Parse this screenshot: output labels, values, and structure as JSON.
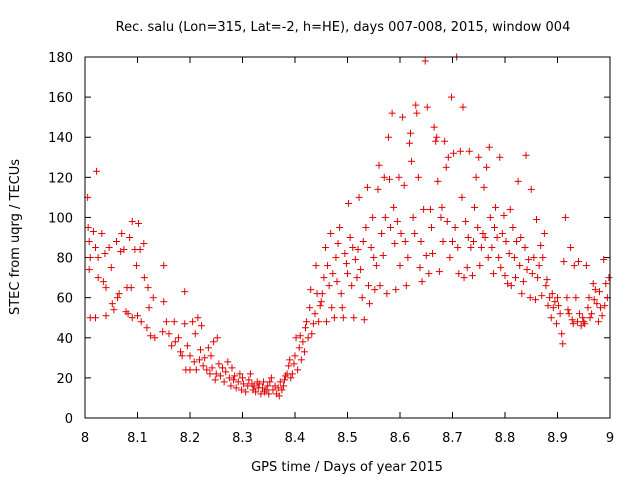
{
  "chart_data": {
    "type": "scatter",
    "title": "Rec. salu (Lon=315, Lat=-2, h=HE), days 007-008, 2015, window 004",
    "xlabel": "GPS time / Days of year 2015",
    "ylabel": "STEC from uqrg / TECUs",
    "xlim": [
      8.0,
      9.0
    ],
    "ylim": [
      0,
      180
    ],
    "x_ticks": [
      "8",
      "8.1",
      "8.2",
      "8.3",
      "8.4",
      "8.5",
      "8.6",
      "8.7",
      "8.8",
      "8.9",
      "9"
    ],
    "y_ticks": [
      "0",
      "20",
      "40",
      "60",
      "80",
      "100",
      "120",
      "140",
      "160",
      "180"
    ],
    "marker": "+",
    "color": "#e00000",
    "points": [
      [
        8.005,
        110
      ],
      [
        8.006,
        95
      ],
      [
        8.008,
        88
      ],
      [
        8.01,
        80
      ],
      [
        8.008,
        74
      ],
      [
        8.01,
        50
      ],
      [
        8.016,
        93
      ],
      [
        8.02,
        85
      ],
      [
        8.022,
        123
      ],
      [
        8.025,
        80
      ],
      [
        8.025,
        70
      ],
      [
        8.02,
        50
      ],
      [
        8.032,
        92
      ],
      [
        8.035,
        68
      ],
      [
        8.038,
        82
      ],
      [
        8.04,
        65
      ],
      [
        8.04,
        51
      ],
      [
        8.046,
        85
      ],
      [
        8.05,
        75
      ],
      [
        8.052,
        57
      ],
      [
        8.055,
        54
      ],
      [
        8.06,
        88
      ],
      [
        8.062,
        60
      ],
      [
        8.065,
        62
      ],
      [
        8.068,
        83
      ],
      [
        8.07,
        92
      ],
      [
        8.074,
        84
      ],
      [
        8.078,
        53
      ],
      [
        8.08,
        65
      ],
      [
        8.082,
        52
      ],
      [
        8.085,
        90
      ],
      [
        8.088,
        65
      ],
      [
        8.09,
        98
      ],
      [
        8.09,
        50
      ],
      [
        8.095,
        84
      ],
      [
        8.098,
        76
      ],
      [
        8.1,
        51
      ],
      [
        8.102,
        97
      ],
      [
        8.105,
        84
      ],
      [
        8.107,
        48
      ],
      [
        8.112,
        87
      ],
      [
        8.113,
        70
      ],
      [
        8.118,
        45
      ],
      [
        8.12,
        65
      ],
      [
        8.122,
        55
      ],
      [
        8.125,
        41
      ],
      [
        8.13,
        60
      ],
      [
        8.133,
        40
      ],
      [
        8.148,
        43
      ],
      [
        8.15,
        76
      ],
      [
        8.15,
        58
      ],
      [
        8.155,
        48
      ],
      [
        8.16,
        42
      ],
      [
        8.165,
        36
      ],
      [
        8.17,
        48
      ],
      [
        8.172,
        38
      ],
      [
        8.178,
        40
      ],
      [
        8.182,
        33
      ],
      [
        8.185,
        31
      ],
      [
        8.19,
        63
      ],
      [
        8.19,
        47
      ],
      [
        8.192,
        24
      ],
      [
        8.195,
        36
      ],
      [
        8.2,
        31
      ],
      [
        8.2,
        24
      ],
      [
        8.205,
        48
      ],
      [
        8.208,
        28
      ],
      [
        8.21,
        42
      ],
      [
        8.212,
        24
      ],
      [
        8.215,
        50
      ],
      [
        8.218,
        29
      ],
      [
        8.22,
        34
      ],
      [
        8.222,
        46
      ],
      [
        8.225,
        26
      ],
      [
        8.228,
        30
      ],
      [
        8.232,
        24
      ],
      [
        8.235,
        35
      ],
      [
        8.238,
        22
      ],
      [
        8.24,
        31
      ],
      [
        8.242,
        25
      ],
      [
        8.245,
        38
      ],
      [
        8.248,
        19
      ],
      [
        8.25,
        22
      ],
      [
        8.252,
        40
      ],
      [
        8.255,
        27
      ],
      [
        8.258,
        21
      ],
      [
        8.262,
        25
      ],
      [
        8.265,
        18
      ],
      [
        8.268,
        23
      ],
      [
        8.272,
        28
      ],
      [
        8.275,
        20
      ],
      [
        8.278,
        16
      ],
      [
        8.28,
        25
      ],
      [
        8.283,
        19
      ],
      [
        8.285,
        21
      ],
      [
        8.288,
        15
      ],
      [
        8.292,
        18
      ],
      [
        8.295,
        22
      ],
      [
        8.298,
        14
      ],
      [
        8.3,
        20
      ],
      [
        8.302,
        17
      ],
      [
        8.306,
        13
      ],
      [
        8.31,
        16
      ],
      [
        8.312,
        19
      ],
      [
        8.315,
        22
      ],
      [
        8.318,
        17
      ],
      [
        8.32,
        14
      ],
      [
        8.322,
        16
      ],
      [
        8.325,
        13
      ],
      [
        8.328,
        18
      ],
      [
        8.33,
        15
      ],
      [
        8.332,
        17
      ],
      [
        8.335,
        12
      ],
      [
        8.338,
        15
      ],
      [
        8.34,
        18
      ],
      [
        8.342,
        13
      ],
      [
        8.345,
        14
      ],
      [
        8.348,
        16
      ],
      [
        8.35,
        12
      ],
      [
        8.352,
        18
      ],
      [
        8.355,
        20
      ],
      [
        8.358,
        14
      ],
      [
        8.362,
        16
      ],
      [
        8.365,
        12
      ],
      [
        8.368,
        15
      ],
      [
        8.37,
        11
      ],
      [
        8.372,
        18
      ],
      [
        8.375,
        14
      ],
      [
        8.378,
        16
      ],
      [
        8.38,
        19
      ],
      [
        8.382,
        21
      ],
      [
        8.385,
        22
      ],
      [
        8.388,
        26
      ],
      [
        8.39,
        29
      ],
      [
        8.392,
        20
      ],
      [
        8.395,
        22
      ],
      [
        8.398,
        27
      ],
      [
        8.4,
        31
      ],
      [
        8.402,
        40
      ],
      [
        8.405,
        24
      ],
      [
        8.408,
        35
      ],
      [
        8.41,
        41
      ],
      [
        8.412,
        29
      ],
      [
        8.415,
        38
      ],
      [
        8.418,
        33
      ],
      [
        8.42,
        45
      ],
      [
        8.422,
        48
      ],
      [
        8.425,
        40
      ],
      [
        8.428,
        55
      ],
      [
        8.43,
        64
      ],
      [
        8.432,
        42
      ],
      [
        8.435,
        47
      ],
      [
        8.438,
        52
      ],
      [
        8.44,
        76
      ],
      [
        8.442,
        62
      ],
      [
        8.445,
        48
      ],
      [
        8.448,
        56
      ],
      [
        8.45,
        58
      ],
      [
        8.452,
        62
      ],
      [
        8.455,
        70
      ],
      [
        8.458,
        85
      ],
      [
        8.46,
        48
      ],
      [
        8.462,
        76
      ],
      [
        8.465,
        66
      ],
      [
        8.468,
        92
      ],
      [
        8.47,
        55
      ],
      [
        8.472,
        72
      ],
      [
        8.475,
        50
      ],
      [
        8.478,
        80
      ],
      [
        8.48,
        68
      ],
      [
        8.482,
        87
      ],
      [
        8.485,
        95
      ],
      [
        8.488,
        62
      ],
      [
        8.49,
        55
      ],
      [
        8.492,
        50
      ],
      [
        8.495,
        82
      ],
      [
        8.498,
        77
      ],
      [
        8.5,
        72
      ],
      [
        8.502,
        107
      ],
      [
        8.505,
        90
      ],
      [
        8.508,
        66
      ],
      [
        8.51,
        85
      ],
      [
        8.512,
        50
      ],
      [
        8.515,
        79
      ],
      [
        8.518,
        70
      ],
      [
        8.52,
        84
      ],
      [
        8.522,
        110
      ],
      [
        8.525,
        74
      ],
      [
        8.528,
        60
      ],
      [
        8.53,
        88
      ],
      [
        8.532,
        49
      ],
      [
        8.535,
        95
      ],
      [
        8.538,
        115
      ],
      [
        8.54,
        66
      ],
      [
        8.542,
        57
      ],
      [
        8.545,
        85
      ],
      [
        8.548,
        100
      ],
      [
        8.55,
        80
      ],
      [
        8.552,
        64
      ],
      [
        8.555,
        76
      ],
      [
        8.558,
        114
      ],
      [
        8.56,
        126
      ],
      [
        8.562,
        66
      ],
      [
        8.565,
        92
      ],
      [
        8.568,
        81
      ],
      [
        8.57,
        120
      ],
      [
        8.572,
        100
      ],
      [
        8.575,
        62
      ],
      [
        8.578,
        140
      ],
      [
        8.58,
        119
      ],
      [
        8.582,
        95
      ],
      [
        8.585,
        152
      ],
      [
        8.588,
        105
      ],
      [
        8.59,
        87
      ],
      [
        8.592,
        64
      ],
      [
        8.595,
        98
      ],
      [
        8.598,
        120
      ],
      [
        8.6,
        76
      ],
      [
        8.602,
        92
      ],
      [
        8.605,
        150
      ],
      [
        8.608,
        116
      ],
      [
        8.61,
        88
      ],
      [
        8.612,
        66
      ],
      [
        8.615,
        80
      ],
      [
        8.618,
        137
      ],
      [
        8.62,
        142
      ],
      [
        8.622,
        128
      ],
      [
        8.625,
        100
      ],
      [
        8.628,
        92
      ],
      [
        8.63,
        156
      ],
      [
        8.632,
        152
      ],
      [
        8.635,
        120
      ],
      [
        8.638,
        75
      ],
      [
        8.64,
        88
      ],
      [
        8.642,
        68
      ],
      [
        8.645,
        104
      ],
      [
        8.648,
        178
      ],
      [
        8.65,
        81
      ],
      [
        8.652,
        155
      ],
      [
        8.655,
        72
      ],
      [
        8.658,
        104
      ],
      [
        8.66,
        95
      ],
      [
        8.662,
        82
      ],
      [
        8.665,
        145
      ],
      [
        8.668,
        138
      ],
      [
        8.67,
        140
      ],
      [
        8.672,
        118
      ],
      [
        8.675,
        73
      ],
      [
        8.678,
        100
      ],
      [
        8.68,
        105
      ],
      [
        8.682,
        88
      ],
      [
        8.685,
        138
      ],
      [
        8.688,
        125
      ],
      [
        8.69,
        98
      ],
      [
        8.692,
        130
      ],
      [
        8.695,
        80
      ],
      [
        8.698,
        160
      ],
      [
        8.7,
        88
      ],
      [
        8.702,
        132
      ],
      [
        8.705,
        95
      ],
      [
        8.708,
        180
      ],
      [
        8.71,
        85
      ],
      [
        8.712,
        72
      ],
      [
        8.715,
        133
      ],
      [
        8.718,
        110
      ],
      [
        8.72,
        155
      ],
      [
        8.722,
        70
      ],
      [
        8.725,
        98
      ],
      [
        8.728,
        75
      ],
      [
        8.73,
        90
      ],
      [
        8.732,
        133
      ],
      [
        8.735,
        85
      ],
      [
        8.738,
        71
      ],
      [
        8.74,
        88
      ],
      [
        8.742,
        105
      ],
      [
        8.745,
        120
      ],
      [
        8.748,
        95
      ],
      [
        8.75,
        130
      ],
      [
        8.752,
        76
      ],
      [
        8.755,
        85
      ],
      [
        8.758,
        92
      ],
      [
        8.76,
        115
      ],
      [
        8.762,
        90
      ],
      [
        8.765,
        125
      ],
      [
        8.768,
        80
      ],
      [
        8.77,
        135
      ],
      [
        8.772,
        100
      ],
      [
        8.775,
        85
      ],
      [
        8.778,
        72
      ],
      [
        8.78,
        95
      ],
      [
        8.782,
        105
      ],
      [
        8.785,
        90
      ],
      [
        8.788,
        80
      ],
      [
        8.79,
        130
      ],
      [
        8.792,
        75
      ],
      [
        8.795,
        92
      ],
      [
        8.798,
        101
      ],
      [
        8.8,
        71
      ],
      [
        8.802,
        88
      ],
      [
        8.805,
        67
      ],
      [
        8.808,
        82
      ],
      [
        8.81,
        104
      ],
      [
        8.812,
        66
      ],
      [
        8.815,
        95
      ],
      [
        8.818,
        80
      ],
      [
        8.82,
        70
      ],
      [
        8.822,
        88
      ],
      [
        8.825,
        118
      ],
      [
        8.828,
        76
      ],
      [
        8.83,
        90
      ],
      [
        8.832,
        62
      ],
      [
        8.835,
        68
      ],
      [
        8.838,
        85
      ],
      [
        8.84,
        131
      ],
      [
        8.842,
        74
      ],
      [
        8.845,
        79
      ],
      [
        8.848,
        60
      ],
      [
        8.85,
        114
      ],
      [
        8.852,
        72
      ],
      [
        8.855,
        80
      ],
      [
        8.858,
        59
      ],
      [
        8.86,
        99
      ],
      [
        8.862,
        70
      ],
      [
        8.865,
        76
      ],
      [
        8.868,
        86
      ],
      [
        8.87,
        61
      ],
      [
        8.872,
        80
      ],
      [
        8.875,
        92
      ],
      [
        8.878,
        66
      ],
      [
        8.88,
        69
      ],
      [
        8.882,
        56
      ],
      [
        8.885,
        60
      ],
      [
        8.888,
        50
      ],
      [
        8.89,
        62
      ],
      [
        8.892,
        55
      ],
      [
        8.895,
        58
      ],
      [
        8.898,
        47
      ],
      [
        8.9,
        60
      ],
      [
        8.902,
        56
      ],
      [
        8.905,
        52
      ],
      [
        8.908,
        42
      ],
      [
        8.91,
        37
      ],
      [
        8.912,
        78
      ],
      [
        8.915,
        100
      ],
      [
        8.918,
        60
      ],
      [
        8.92,
        54
      ],
      [
        8.922,
        52
      ],
      [
        8.925,
        85
      ],
      [
        8.928,
        49
      ],
      [
        8.93,
        47
      ],
      [
        8.932,
        76
      ],
      [
        8.935,
        60
      ],
      [
        8.938,
        48
      ],
      [
        8.94,
        78
      ],
      [
        8.942,
        52
      ],
      [
        8.945,
        46
      ],
      [
        8.948,
        50
      ],
      [
        8.95,
        48
      ],
      [
        8.952,
        47
      ],
      [
        8.955,
        76
      ],
      [
        8.958,
        55
      ],
      [
        8.96,
        60
      ],
      [
        8.962,
        50
      ],
      [
        8.965,
        52
      ],
      [
        8.968,
        67
      ],
      [
        8.97,
        59
      ],
      [
        8.972,
        64
      ],
      [
        8.975,
        57
      ],
      [
        8.978,
        48
      ],
      [
        8.98,
        63
      ],
      [
        8.982,
        55
      ],
      [
        8.985,
        51
      ],
      [
        8.988,
        79
      ],
      [
        8.99,
        56
      ],
      [
        8.992,
        67
      ],
      [
        8.995,
        60
      ],
      [
        8.998,
        70
      ]
    ]
  }
}
